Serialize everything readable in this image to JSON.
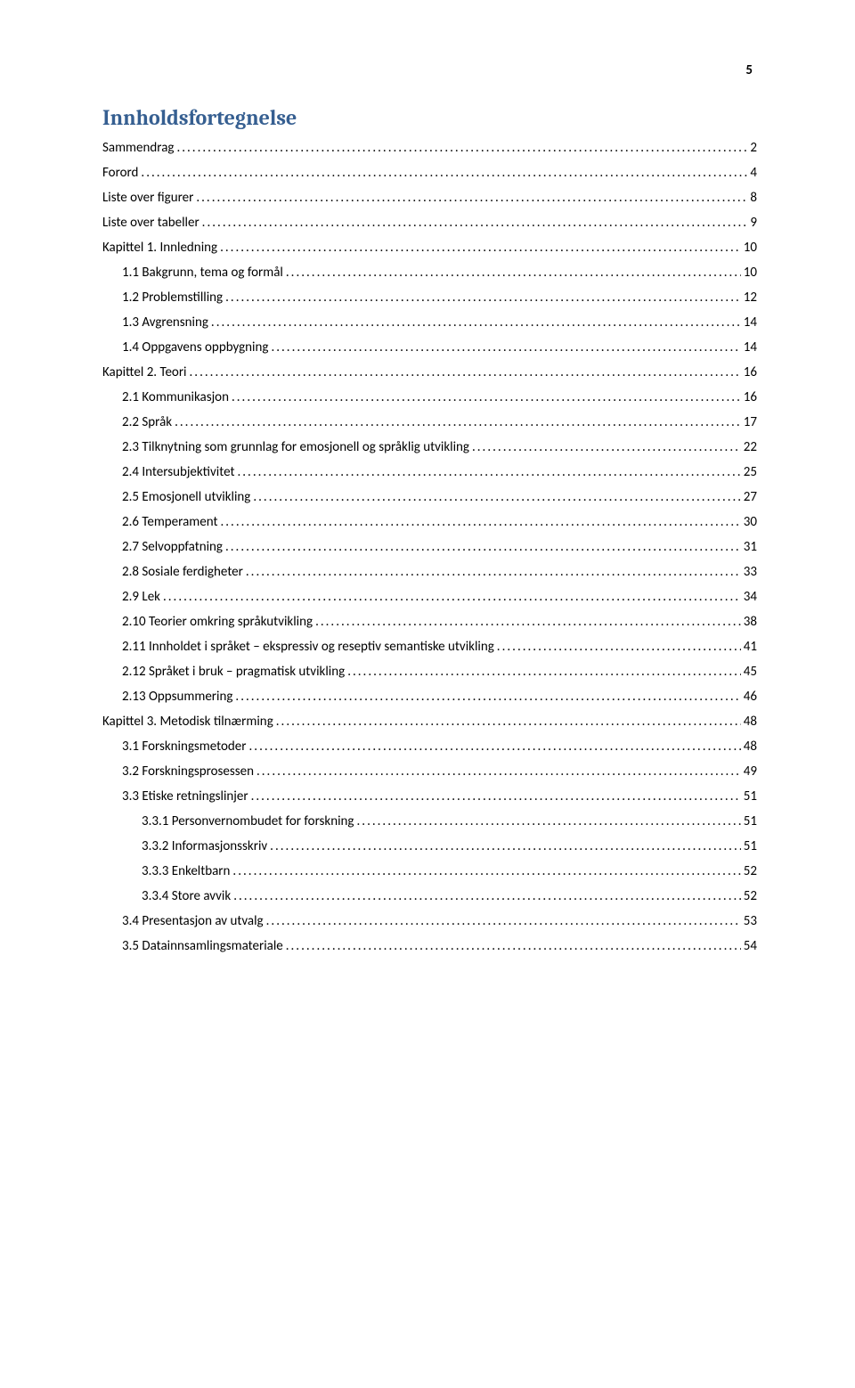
{
  "page_number": "5",
  "title": "Innholdsfortegnelse",
  "colors": {
    "title_color": "#365f91",
    "text_color": "#000000",
    "background": "#ffffff"
  },
  "typography": {
    "title_font": "Cambria",
    "body_font": "Calibri",
    "title_size_pt": 18,
    "body_size_pt": 11
  },
  "toc": [
    {
      "label": "Sammendrag",
      "page": "2",
      "indent": 0
    },
    {
      "label": "Forord",
      "page": "4",
      "indent": 0
    },
    {
      "label": "Liste over figurer",
      "page": "8",
      "indent": 0
    },
    {
      "label": "Liste over tabeller",
      "page": "9",
      "indent": 0
    },
    {
      "label": "Kapittel 1. Innledning",
      "page": "10",
      "indent": 0
    },
    {
      "label": "1.1 Bakgrunn, tema og formål",
      "page": "10",
      "indent": 1
    },
    {
      "label": "1.2 Problemstilling",
      "page": "12",
      "indent": 1
    },
    {
      "label": "1.3 Avgrensning",
      "page": "14",
      "indent": 1
    },
    {
      "label": "1.4 Oppgavens oppbygning",
      "page": "14",
      "indent": 1
    },
    {
      "label": "Kapittel 2. Teori",
      "page": "16",
      "indent": 0
    },
    {
      "label": "2.1 Kommunikasjon",
      "page": "16",
      "indent": 1
    },
    {
      "label": "2.2 Språk",
      "page": "17",
      "indent": 1
    },
    {
      "label": "2.3 Tilknytning som grunnlag for emosjonell og språklig utvikling",
      "page": "22",
      "indent": 1
    },
    {
      "label": "2.4 Intersubjektivitet",
      "page": "25",
      "indent": 1
    },
    {
      "label": "2.5 Emosjonell utvikling",
      "page": "27",
      "indent": 1
    },
    {
      "label": "2.6 Temperament",
      "page": "30",
      "indent": 1
    },
    {
      "label": "2.7 Selvoppfatning",
      "page": "31",
      "indent": 1
    },
    {
      "label": "2.8 Sosiale ferdigheter",
      "page": "33",
      "indent": 1
    },
    {
      "label": "2.9 Lek",
      "page": "34",
      "indent": 1
    },
    {
      "label": "2.10 Teorier omkring språkutvikling",
      "page": "38",
      "indent": 1
    },
    {
      "label": "2.11 Innholdet i språket – ekspressiv og reseptiv semantiske utvikling",
      "page": "41",
      "indent": 1
    },
    {
      "label": "2.12 Språket i bruk – pragmatisk utvikling",
      "page": "45",
      "indent": 1
    },
    {
      "label": "2.13 Oppsummering",
      "page": "46",
      "indent": 1
    },
    {
      "label": "Kapittel 3. Metodisk tilnærming",
      "page": "48",
      "indent": 0
    },
    {
      "label": "3.1 Forskningsmetoder",
      "page": "48",
      "indent": 1
    },
    {
      "label": "3.2 Forskningsprosessen",
      "page": "49",
      "indent": 1
    },
    {
      "label": "3.3 Etiske retningslinjer",
      "page": "51",
      "indent": 1
    },
    {
      "label": "3.3.1 Personvernombudet for forskning",
      "page": "51",
      "indent": 2
    },
    {
      "label": "3.3.2 Informasjonsskriv",
      "page": "51",
      "indent": 2
    },
    {
      "label": "3.3.3 Enkeltbarn",
      "page": "52",
      "indent": 2
    },
    {
      "label": "3.3.4 Store avvik",
      "page": "52",
      "indent": 2
    },
    {
      "label": "3.4 Presentasjon av utvalg",
      "page": "53",
      "indent": 1
    },
    {
      "label": "3.5 Datainnsamlingsmateriale",
      "page": "54",
      "indent": 1
    }
  ]
}
